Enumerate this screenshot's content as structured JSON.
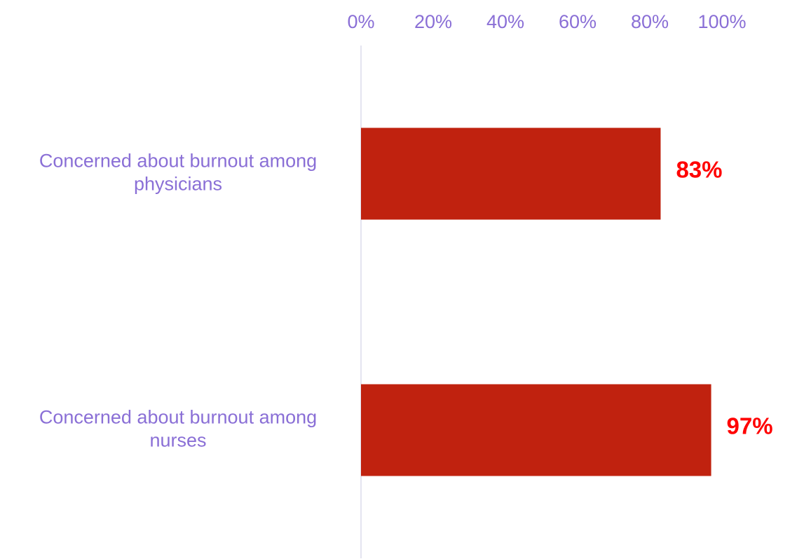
{
  "chart_data": {
    "type": "bar",
    "orientation": "horizontal",
    "title": "",
    "xlabel": "",
    "ylabel": "",
    "xlim": [
      0,
      100
    ],
    "x_ticks": [
      "0%",
      "20%",
      "40%",
      "60%",
      "80%",
      "100%"
    ],
    "x_axis_position": "top",
    "grid": false,
    "legend": "none",
    "categories": [
      [
        "Concerned about burnout among",
        "physicians"
      ],
      [
        "Concerned about burnout among",
        "nurses"
      ]
    ],
    "values": [
      83,
      97
    ],
    "data_labels": [
      "83%",
      "97%"
    ]
  },
  "colors": {
    "bar": "#c0220f",
    "data_label": "#ff0000",
    "axis_text": "#8a6fd6",
    "axis_line": "#dcdcec"
  }
}
